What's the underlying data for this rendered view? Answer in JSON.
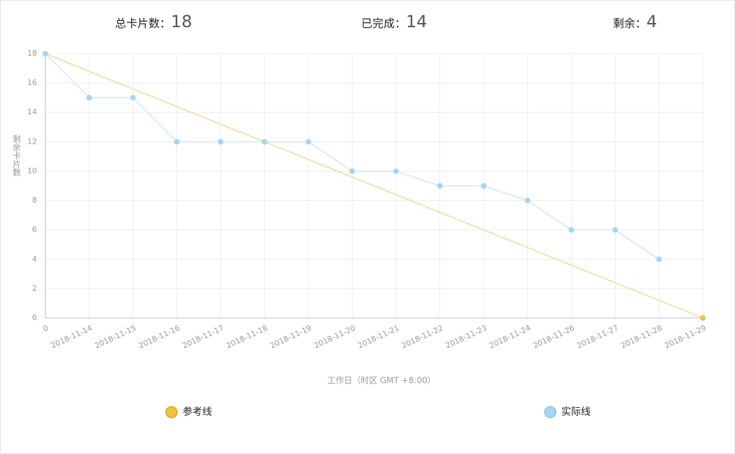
{
  "chart_data": {
    "type": "line",
    "stats": [
      {
        "label": "总卡片数：",
        "value": 18
      },
      {
        "label": "已完成：",
        "value": 14
      },
      {
        "label": "剩余：",
        "value": 4
      }
    ],
    "categories": [
      "0",
      "2018-11-14",
      "2018-11-15",
      "2018-11-16",
      "2018-11-17",
      "2018-11-18",
      "2018-11-19",
      "2018-11-20",
      "2018-11-21",
      "2018-11-22",
      "2018-11-23",
      "2018-11-24",
      "2018-11-26",
      "2018-11-27",
      "2018-11-28",
      "2018-11-29"
    ],
    "series": [
      {
        "name": "参考线",
        "color": "#f0c440",
        "values": [
          18,
          16.8,
          15.6,
          14.4,
          13.2,
          12,
          10.8,
          9.6,
          8.4,
          7.2,
          6,
          4.8,
          3.6,
          2.4,
          1.2,
          0
        ]
      },
      {
        "name": "实际线",
        "color": "#a9d3f2",
        "values": [
          18,
          15,
          15,
          12,
          12,
          12,
          12,
          10,
          10,
          9,
          9,
          8,
          6,
          6,
          4,
          null
        ]
      }
    ],
    "ylabel": "剩余卡片数",
    "xlabel": "工作日（时区 GMT +8:00）",
    "ylim": [
      0,
      18
    ],
    "yticks": [
      0,
      2,
      4,
      6,
      8,
      10,
      12,
      14,
      16,
      18
    ],
    "grid": true
  }
}
